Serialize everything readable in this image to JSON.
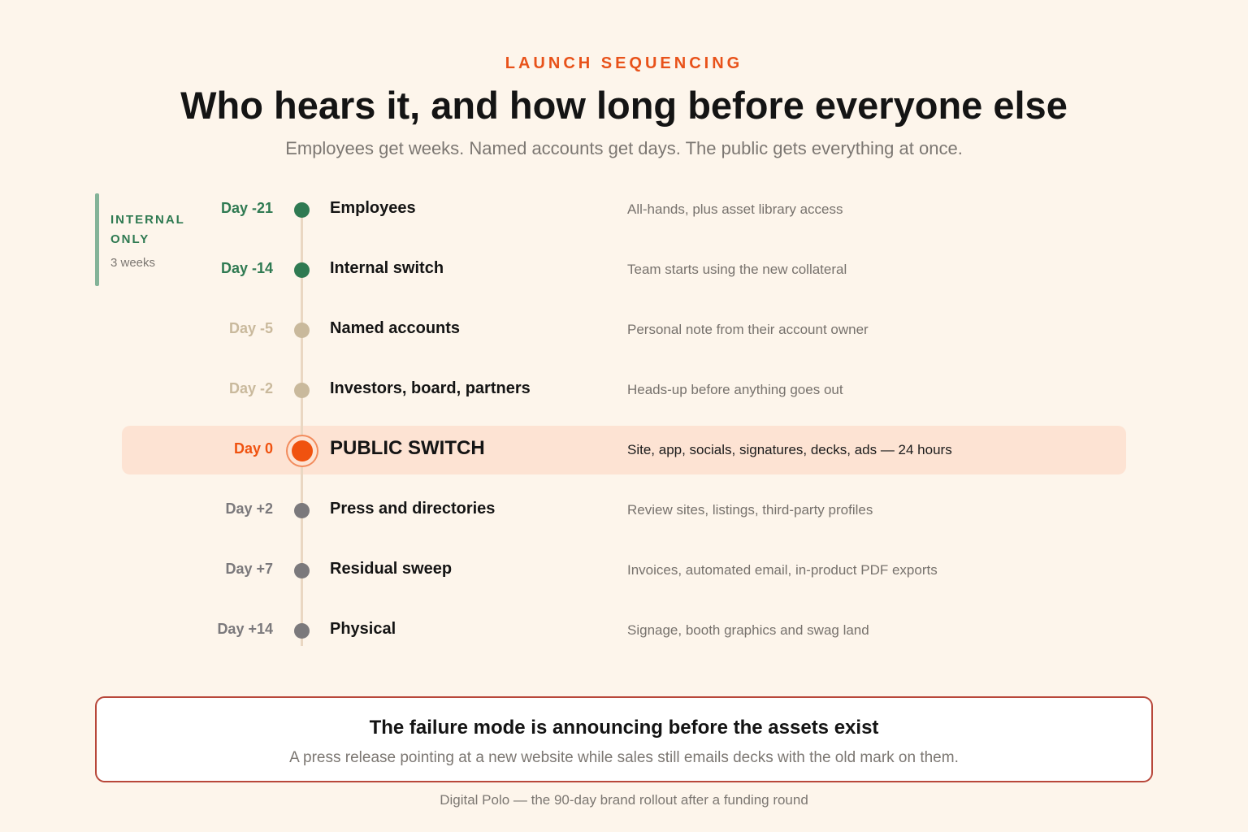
{
  "header": {
    "eyebrow": "LAUNCH SEQUENCING",
    "title": "Who hears it, and how long before everyone else",
    "subtitle": "Employees get weeks. Named accounts get days. The public gets everything at once."
  },
  "internal_window": {
    "label": "INTERNAL ONLY",
    "duration": "3 weeks",
    "color": "#2f7a52"
  },
  "timeline": [
    {
      "day": "Day -21",
      "label": "Employees",
      "desc": "All-hands, plus asset library access",
      "color": "#2f7a52"
    },
    {
      "day": "Day -14",
      "label": "Internal switch",
      "desc": "Team starts using the new collateral",
      "color": "#2f7a52"
    },
    {
      "day": "Day -5",
      "label": "Named accounts",
      "desc": "Personal note from their account owner",
      "color": "#c9b99c"
    },
    {
      "day": "Day -2",
      "label": "Investors, board, partners",
      "desc": "Heads-up before anything goes out",
      "color": "#c9b99c"
    },
    {
      "day": "Day 0",
      "label": "PUBLIC SWITCH",
      "desc": "Site, app, socials, signatures, decks, ads — 24 hours",
      "color": "#f0520f",
      "highlight": true
    },
    {
      "day": "Day +2",
      "label": "Press and directories",
      "desc": "Review sites, listings, third-party profiles",
      "color": "#7b797c"
    },
    {
      "day": "Day +7",
      "label": "Residual sweep",
      "desc": "Invoices, automated email, in-product PDF exports",
      "color": "#7b797c"
    },
    {
      "day": "Day +14",
      "label": "Physical",
      "desc": "Signage, booth graphics and swag land",
      "color": "#7b797c"
    }
  ],
  "callout": {
    "title": "The failure mode is announcing before the assets exist",
    "body": "A press release pointing at a new website while sales still emails decks with the old mark on them."
  },
  "footer": {
    "text": "Digital Polo — the 90-day brand rollout after a funding round"
  }
}
